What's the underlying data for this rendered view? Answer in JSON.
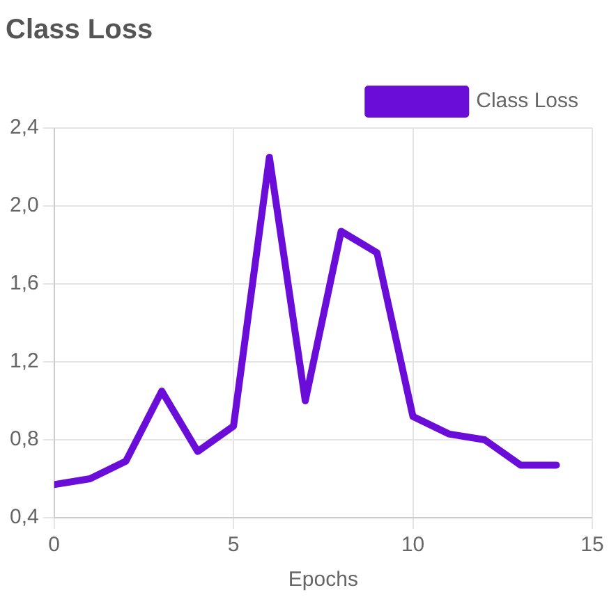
{
  "chart_data": {
    "type": "line",
    "title": "Class Loss",
    "xlabel": "Epochs",
    "x": [
      0,
      1,
      2,
      3,
      4,
      5,
      6,
      7,
      8,
      9,
      10,
      11,
      12,
      13,
      14
    ],
    "series": [
      {
        "name": "Class Loss",
        "color": "#6a0dd8",
        "values": [
          0.57,
          0.6,
          0.69,
          1.05,
          0.74,
          0.87,
          2.25,
          1.0,
          1.87,
          1.76,
          0.92,
          0.83,
          0.8,
          0.67,
          0.67
        ]
      }
    ],
    "xlim": [
      0,
      15
    ],
    "xticks": [
      0,
      5,
      10,
      15
    ],
    "ylim": [
      0.4,
      2.4
    ],
    "yticks": [
      {
        "value": 0.4,
        "label": "0,4"
      },
      {
        "value": 0.8,
        "label": "0,8"
      },
      {
        "value": 1.2,
        "label": "1,2"
      },
      {
        "value": 1.6,
        "label": "1,6"
      },
      {
        "value": 2.0,
        "label": "2,0"
      },
      {
        "value": 2.4,
        "label": "2,4"
      }
    ],
    "grid": true,
    "legend": "top right",
    "marker": "none",
    "line_style": "solid"
  }
}
